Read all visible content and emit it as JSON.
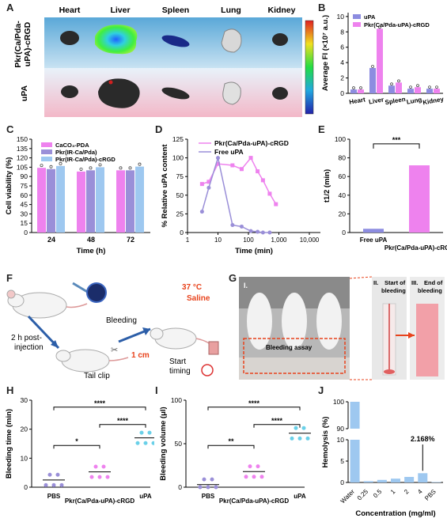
{
  "panels": {
    "A": "A",
    "B": "B",
    "C": "C",
    "D": "D",
    "E": "E",
    "F": "F",
    "G": "G",
    "H": "H",
    "I": "I",
    "J": "J"
  },
  "panelA": {
    "organs": [
      "Heart",
      "Liver",
      "Spleen",
      "Lung",
      "Kidney"
    ],
    "rows": [
      "Pkr(Ca/Pda-\nuPA)-cRGD",
      "uPA"
    ],
    "row1_line1": "Pkr(Ca/Pda-",
    "row1_line2": "uPA)-cRGD",
    "row2": "uPA"
  },
  "panelF": {
    "post_injection_1": "2 h post-",
    "post_injection_2": "injection",
    "tail_clip": "Tail clip",
    "clip_length": "1 cm",
    "bleeding": "Bleeding",
    "temp": "37 °C",
    "saline": "Saline",
    "start_timing_1": "Start",
    "start_timing_2": "timing"
  },
  "panelG": {
    "label1": "I.",
    "label2": "II.",
    "label3": "III.",
    "start1": "Start of",
    "start2": "bleeding",
    "end1": "End of",
    "end2": "bleeding",
    "assay": "Bleeding assay"
  },
  "colors": {
    "pink": "#ee82ee",
    "blue": "#8c8ce0",
    "lightblue": "#9ec8f0",
    "purple": "#9a8fd8",
    "red": "#e8431c"
  },
  "chart_data": [
    {
      "id": "B",
      "type": "bar",
      "categories": [
        "Heart",
        "Liver",
        "Spleen",
        "Lung",
        "Kidney"
      ],
      "series": [
        {
          "name": "uPA",
          "values": [
            0.5,
            3.3,
            1.0,
            0.6,
            0.6
          ]
        },
        {
          "name": "Pkr(Ca/Pda-uPA)-cRGD",
          "values": [
            0.5,
            8.4,
            1.4,
            0.8,
            0.6
          ]
        }
      ],
      "ylabel": "Average FI (×10⁷ a.u.)",
      "yticks": [
        0,
        2,
        4,
        6,
        8,
        10
      ],
      "ylim": [
        0,
        10.5
      ]
    },
    {
      "id": "C",
      "type": "bar",
      "categories": [
        "24",
        "48",
        "72"
      ],
      "series": [
        {
          "name": "CaCO₃-PDA",
          "values": [
            104,
            98,
            100
          ]
        },
        {
          "name": "Pkr(IR-Ca/Pda)",
          "values": [
            102,
            100,
            100
          ]
        },
        {
          "name": "Pkr(IR-Ca/Pda)-cRGD",
          "values": [
            107,
            105,
            106
          ]
        }
      ],
      "xlabel": "Time (h)",
      "ylabel": "Cell viability (%)",
      "yticks": [
        0,
        15,
        30,
        45,
        60,
        75,
        90,
        105,
        120,
        135,
        150
      ],
      "ylim": [
        0,
        150
      ]
    },
    {
      "id": "D",
      "type": "line",
      "xscale": "log",
      "series": [
        {
          "name": "Pkr(Ca/Pda-uPA)-cRGD",
          "x": [
            3,
            5,
            10,
            30,
            60,
            120,
            200,
            300,
            500,
            800
          ],
          "y": [
            65,
            68,
            92,
            90,
            85,
            100,
            82,
            70,
            52,
            38
          ]
        },
        {
          "name": "Free uPA",
          "x": [
            3,
            5,
            10,
            30,
            60,
            120,
            200,
            300,
            500
          ],
          "y": [
            28,
            60,
            100,
            10,
            8,
            2,
            1,
            0,
            0
          ]
        }
      ],
      "xlabel": "Time (min)",
      "ylabel": "% Relative uPA content",
      "xticks": [
        "1",
        "10",
        "100",
        "1,000",
        "10,000"
      ],
      "yticks": [
        0,
        25,
        50,
        75,
        100,
        125
      ],
      "ylim": [
        0,
        125
      ]
    },
    {
      "id": "E",
      "type": "bar",
      "categories": [
        "Free uPA",
        "Pkr(Ca/Pda-uPA)-cRGD"
      ],
      "values": [
        4,
        72
      ],
      "ylabel": "t1/2 (min)",
      "yticks": [
        0,
        20,
        40,
        60,
        80,
        100
      ],
      "ylim": [
        0,
        100
      ],
      "annotation": "***"
    },
    {
      "id": "H",
      "type": "scatter",
      "categories": [
        "PBS",
        "Pkr(Ca/Pda-uPA)-cRGD",
        "uPA"
      ],
      "means": [
        2.5,
        5.3,
        17
      ],
      "ylabel": "Bleeding time (min)",
      "yticks": [
        0,
        10,
        20,
        30
      ],
      "ylim": [
        0,
        30
      ],
      "sig": [
        "*",
        "****",
        "****"
      ]
    },
    {
      "id": "I",
      "type": "scatter",
      "categories": [
        "PBS",
        "Pkr(Ca/Pda-uPA)-cRGD",
        "uPA"
      ],
      "means": [
        3,
        18,
        62
      ],
      "ylabel": "Bleeding volume (μl)",
      "yticks": [
        0,
        50,
        100
      ],
      "ylim": [
        0,
        100
      ],
      "sig": [
        "**",
        "****",
        "****"
      ]
    },
    {
      "id": "J",
      "type": "bar",
      "categories": [
        "Water",
        "0.25",
        "0.5",
        "1",
        "2",
        "4",
        "PBS"
      ],
      "values": [
        100,
        0.3,
        0.6,
        0.9,
        1.3,
        2.168,
        0.1
      ],
      "xlabel": "Concentration (mg/ml)",
      "ylabel": "Hemolysis (%)",
      "annotation": "2.168%"
    }
  ]
}
